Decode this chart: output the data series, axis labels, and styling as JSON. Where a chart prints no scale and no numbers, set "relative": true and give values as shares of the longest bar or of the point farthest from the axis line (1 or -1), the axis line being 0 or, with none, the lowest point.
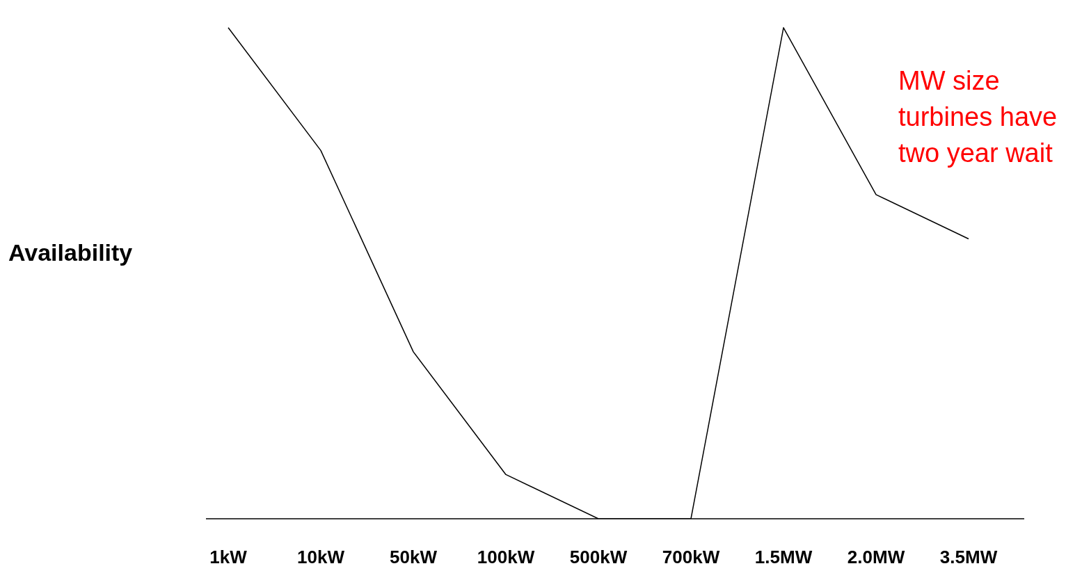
{
  "chart_data": {
    "type": "line",
    "ylabel": "Availability",
    "categories": [
      "1kW",
      "10kW",
      "50kW",
      "100kW",
      "500kW",
      "700kW",
      "1.5MW",
      "2.0MW",
      "3.5MW"
    ],
    "series": [
      {
        "color": "#000000",
        "values": [
          1,
          0.75,
          0.34,
          0.09,
          0,
          0,
          1,
          0.66,
          0.57
        ]
      }
    ],
    "relative": true,
    "marker": "none",
    "line_style": "solid",
    "annotations": [
      "MW size turbines have two year wait"
    ]
  }
}
